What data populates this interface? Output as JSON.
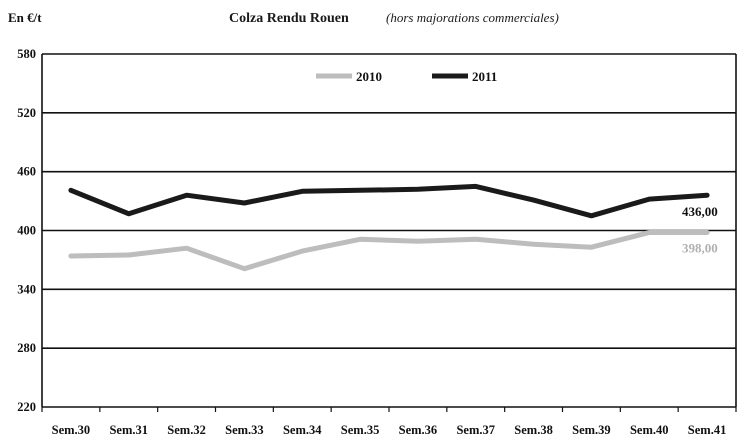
{
  "chart_data": {
    "type": "line",
    "title": "Colza Rendu Rouen",
    "subtitle": "(hors majorations commerciales)",
    "ylabel": "En €/t",
    "xlabel": "",
    "ylim": [
      220,
      580
    ],
    "yticks": [
      220,
      280,
      340,
      400,
      460,
      520,
      580
    ],
    "grid": "horizontal",
    "legend_position": "top-right",
    "categories": [
      "Sem.30",
      "Sem.31",
      "Sem.32",
      "Sem.33",
      "Sem.34",
      "Sem.35",
      "Sem.36",
      "Sem.37",
      "Sem.38",
      "Sem.39",
      "Sem.40",
      "Sem.41"
    ],
    "series": [
      {
        "name": "2010",
        "color": "#bdbdbd",
        "values": [
          374,
          375,
          382,
          361,
          379,
          391,
          389,
          391,
          386,
          383,
          398,
          398
        ],
        "end_label": "398,00"
      },
      {
        "name": "2011",
        "color": "#1a1a1a",
        "values": [
          441,
          417,
          436,
          428,
          440,
          441,
          442,
          445,
          431,
          415,
          432,
          436
        ],
        "end_label": "436,00"
      }
    ]
  }
}
